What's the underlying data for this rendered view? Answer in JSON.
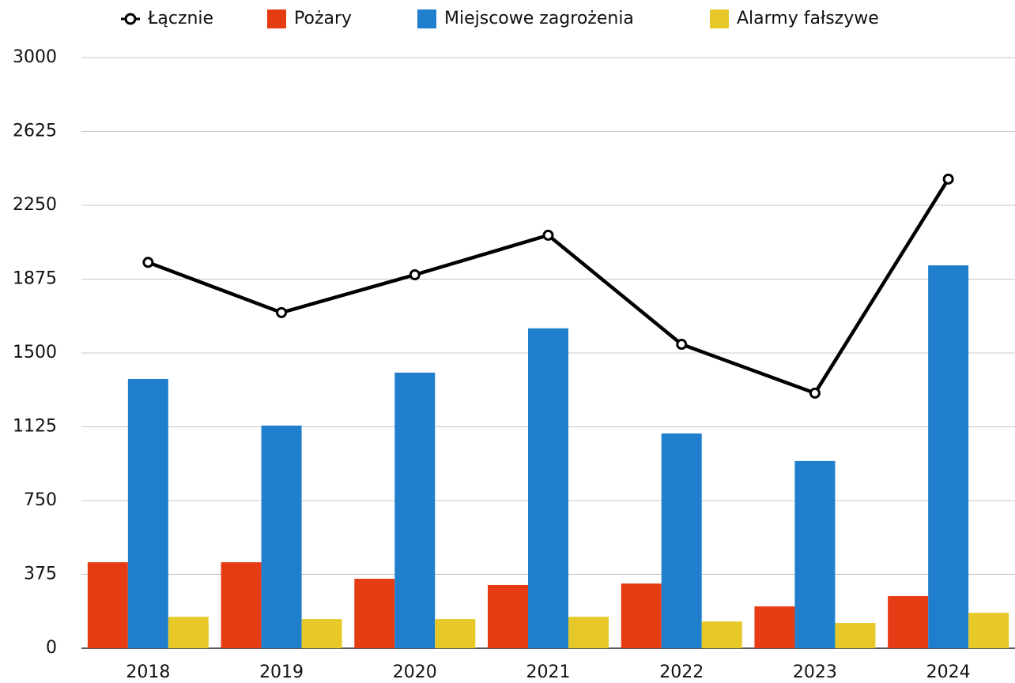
{
  "chart_data": {
    "type": "bar",
    "categories": [
      "2018",
      "2019",
      "2020",
      "2021",
      "2022",
      "2023",
      "2024"
    ],
    "series": [
      {
        "name": "Łącznie",
        "type": "line",
        "color": "#000000",
        "values": [
          1960,
          1705,
          1897,
          2098,
          1544,
          1296,
          2383
        ]
      },
      {
        "name": "Pożary",
        "color": "#e63c14",
        "values": [
          437,
          437,
          353,
          321,
          329,
          213,
          265
        ]
      },
      {
        "name": "Miejscowe zagrożenia",
        "color": "#1f7fcc",
        "values": [
          1368,
          1131,
          1400,
          1625,
          1091,
          951,
          1945
        ]
      },
      {
        "name": "Alarmy fałszywe",
        "color": "#e6c828",
        "values": [
          160,
          148,
          148,
          160,
          136,
          128,
          180
        ]
      }
    ],
    "ylim": [
      0,
      3000
    ],
    "yticks": [
      0,
      375,
      750,
      1125,
      1500,
      1875,
      2250,
      2625,
      3000
    ],
    "grid": true,
    "legend": "top"
  }
}
